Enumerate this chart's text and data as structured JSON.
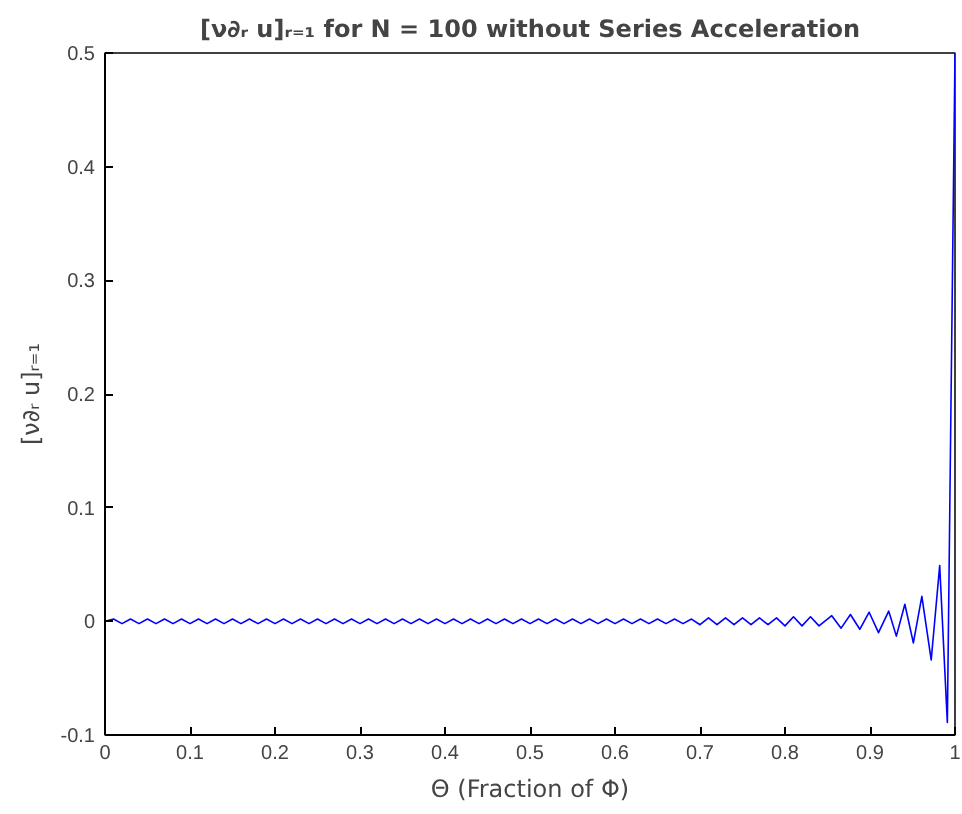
{
  "chart_data": {
    "type": "line",
    "title": "[ν∂ᵣ u]ᵣ₌₁ for N = 100 without Series Acceleration",
    "xlabel": "Θ (Fraction of Φ)",
    "ylabel": "[ν∂ᵣ u]ᵣ₌₁",
    "series": [
      {
        "color": "#0000ff",
        "x": [
          0,
          0.01,
          0.02,
          0.03,
          0.04,
          0.05,
          0.06,
          0.07,
          0.08,
          0.09,
          0.1,
          0.11,
          0.12,
          0.13,
          0.14,
          0.15,
          0.16,
          0.17,
          0.18,
          0.19,
          0.2,
          0.21,
          0.22,
          0.23,
          0.24,
          0.25,
          0.26,
          0.27,
          0.28,
          0.29,
          0.3,
          0.31,
          0.32,
          0.33,
          0.34,
          0.35,
          0.36,
          0.37,
          0.38,
          0.39,
          0.4,
          0.41,
          0.42,
          0.43,
          0.44,
          0.45,
          0.46,
          0.47,
          0.48,
          0.49,
          0.5,
          0.51,
          0.52,
          0.53,
          0.54,
          0.55,
          0.56,
          0.57,
          0.58,
          0.59,
          0.6,
          0.61,
          0.62,
          0.63,
          0.64,
          0.65,
          0.66,
          0.67,
          0.68,
          0.69,
          0.7,
          0.71,
          0.72,
          0.73,
          0.74,
          0.75,
          0.76,
          0.77,
          0.78,
          0.79,
          0.8,
          0.81,
          0.82,
          0.83,
          0.84,
          0.855,
          0.866,
          0.877,
          0.888,
          0.899,
          0.91,
          0.922,
          0.931,
          0.941,
          0.951,
          0.961,
          0.972,
          0.982,
          0.991,
          1.0
        ],
        "values": [
          0,
          0.002,
          -0.002,
          0.002,
          -0.002,
          0.002,
          -0.002,
          0.002,
          -0.002,
          0.002,
          -0.002,
          0.002,
          -0.002,
          0.002,
          -0.002,
          0.002,
          -0.002,
          0.002,
          -0.002,
          0.002,
          -0.002,
          0.002,
          -0.002,
          0.002,
          -0.002,
          0.002,
          -0.002,
          0.002,
          -0.002,
          0.002,
          -0.002,
          0.002,
          -0.002,
          0.002,
          -0.002,
          0.002,
          -0.002,
          0.002,
          -0.002,
          0.002,
          -0.002,
          0.002,
          -0.002,
          0.002,
          -0.002,
          0.002,
          -0.002,
          0.002,
          -0.002,
          0.002,
          -0.002,
          0.002,
          -0.002,
          0.002,
          -0.002,
          0.002,
          -0.002,
          0.002,
          -0.002,
          0.002,
          -0.002,
          0.002,
          -0.002,
          0.002,
          -0.002,
          0.002,
          -0.002,
          0.002,
          -0.002,
          0.002,
          -0.003,
          0.003,
          -0.003,
          0.003,
          -0.003,
          0.003,
          -0.003,
          0.003,
          -0.003,
          0.003,
          -0.004,
          0.004,
          -0.004,
          0.004,
          -0.004,
          0.005,
          -0.006,
          0.006,
          -0.007,
          0.008,
          -0.01,
          0.009,
          -0.013,
          0.015,
          -0.019,
          0.022,
          -0.034,
          0.049,
          -0.089,
          0.5
        ]
      }
    ],
    "xlim": [
      0,
      1
    ],
    "ylim": [
      -0.1,
      0.5
    ],
    "xticks": [
      0,
      0.1,
      0.2,
      0.3,
      0.4,
      0.5,
      0.6,
      0.7,
      0.8,
      0.9,
      1
    ],
    "yticks": [
      -0.1,
      0,
      0.1,
      0.2,
      0.3,
      0.4,
      0.5
    ],
    "grid": false
  }
}
